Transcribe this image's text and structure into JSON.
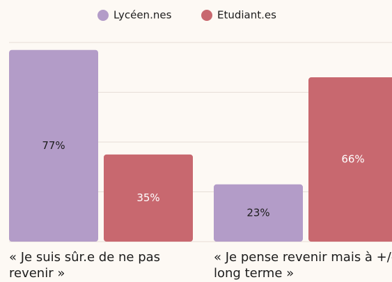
{
  "chart_data": {
    "type": "bar",
    "categories": [
      "« Je suis sûr.e de ne pas revenir »",
      "« Je pense revenir mais à +/- long terme »"
    ],
    "series": [
      {
        "name": "Lycéen.nes",
        "color": "#b39cc8",
        "values": [
          77,
          23
        ],
        "value_labels": [
          "77%",
          "23%"
        ]
      },
      {
        "name": "Etudiant.es",
        "color": "#c8686f",
        "values": [
          35,
          66
        ],
        "value_labels": [
          "35%",
          "66%"
        ]
      }
    ],
    "ylim": [
      0,
      80
    ],
    "yticks": [
      0,
      20,
      40,
      60,
      80
    ],
    "grid": true,
    "legend": "top"
  }
}
